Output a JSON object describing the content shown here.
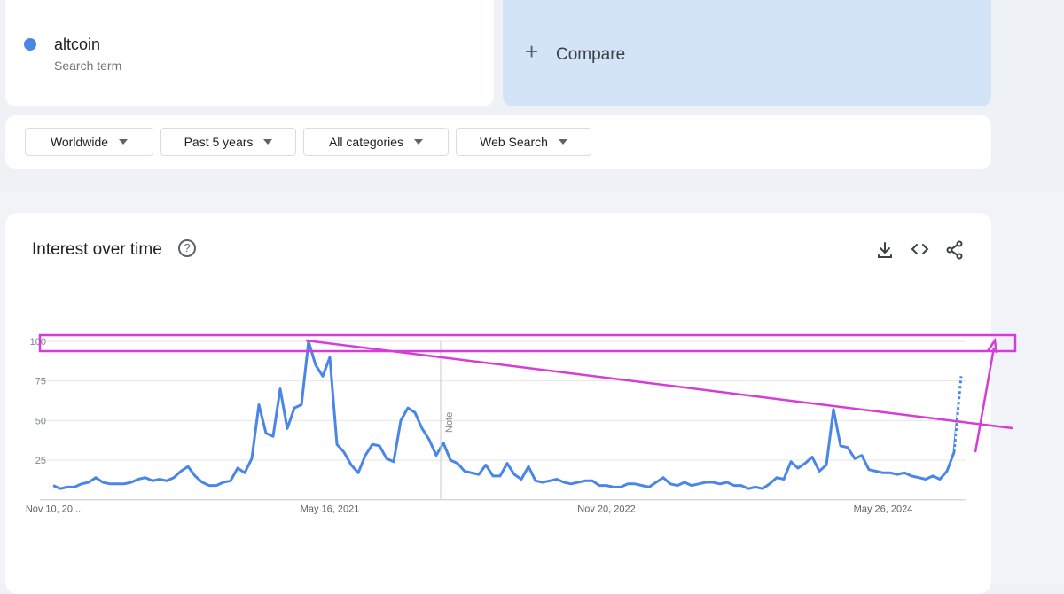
{
  "search": {
    "term": "altcoin",
    "subtitle": "Search term",
    "compare": "Compare"
  },
  "filters": [
    "Worldwide",
    "Past 5 years",
    "All categories",
    "Web Search"
  ],
  "chart_data": {
    "type": "line",
    "title": "Interest over time",
    "color": "#4a86e8",
    "grid": true,
    "annotation": "Note",
    "ylim": [
      0,
      100
    ],
    "yticks": [
      25,
      50,
      75,
      100
    ],
    "categories": [
      "Nov 10, 20...",
      null,
      null,
      null,
      null,
      null,
      null,
      null,
      null,
      null,
      null,
      null,
      null,
      null,
      null,
      null,
      null,
      null,
      null,
      null,
      null,
      null,
      null,
      null,
      null,
      null,
      null,
      null,
      null,
      null,
      null,
      null,
      null,
      null,
      null,
      null,
      null,
      null,
      null,
      "May 16, 2021",
      null,
      null,
      null,
      null,
      null,
      null,
      null,
      null,
      null,
      null,
      null,
      null,
      null,
      null,
      null,
      null,
      null,
      null,
      null,
      null,
      null,
      null,
      null,
      null,
      null,
      null,
      null,
      null,
      null,
      null,
      null,
      null,
      null,
      null,
      null,
      null,
      null,
      null,
      "Nov 20, 2022",
      null,
      null,
      null,
      null,
      null,
      null,
      null,
      null,
      null,
      null,
      null,
      null,
      null,
      null,
      null,
      null,
      null,
      null,
      null,
      null,
      null,
      null,
      null,
      null,
      null,
      null,
      null,
      null,
      null,
      null,
      null,
      null,
      null,
      null,
      null,
      null,
      null,
      null,
      "May 26, 2024",
      null,
      null,
      null,
      null,
      null,
      null,
      null,
      null,
      null,
      null,
      null
    ],
    "values": [
      9,
      7,
      8,
      8,
      10,
      11,
      14,
      11,
      10,
      10,
      10,
      11,
      13,
      14,
      12,
      13,
      12,
      14,
      18,
      21,
      15,
      11,
      9,
      9,
      11,
      12,
      20,
      17,
      26,
      60,
      42,
      40,
      70,
      45,
      58,
      60,
      100,
      85,
      78,
      90,
      35,
      30,
      22,
      17,
      28,
      35,
      34,
      26,
      24,
      50,
      58,
      55,
      45,
      38,
      28,
      36,
      25,
      23,
      18,
      17,
      16,
      22,
      15,
      15,
      23,
      16,
      13,
      21,
      12,
      11,
      12,
      13,
      11,
      10,
      11,
      12,
      12,
      9,
      9,
      8,
      8,
      10,
      10,
      9,
      8,
      11,
      14,
      10,
      9,
      11,
      9,
      10,
      11,
      11,
      10,
      11,
      9,
      9,
      7,
      8,
      7,
      10,
      14,
      13,
      24,
      20,
      23,
      27,
      18,
      22,
      57,
      34,
      33,
      26,
      28,
      19,
      18,
      17,
      17,
      16,
      17,
      15,
      14,
      13,
      15,
      13,
      18,
      30,
      78
    ]
  }
}
